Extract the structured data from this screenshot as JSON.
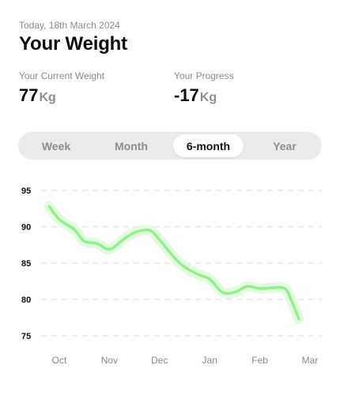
{
  "header": {
    "date": "Today, 18th March 2024",
    "title": "Your Weight"
  },
  "stats": {
    "current": {
      "label": "Your Current Weight",
      "value": "77",
      "unit": "Kg"
    },
    "progress": {
      "label": "Your Progress",
      "value": "-17",
      "unit": "Kg"
    }
  },
  "range_tabs": {
    "items": [
      "Week",
      "Month",
      "6-month",
      "Year"
    ],
    "selected": "6-month"
  },
  "colors": {
    "line": "#93ee8e",
    "glow": "#e3fbdf",
    "grid": "#dcdcdc",
    "selected_tab_bg": "#ffffff",
    "segment_bg": "#ebebeb"
  },
  "chart_data": {
    "type": "line",
    "x_tick_labels": [
      "Oct",
      "Nov",
      "Dec",
      "Jan",
      "Feb",
      "Mar"
    ],
    "y_ticks": [
      95,
      90,
      85,
      80,
      75
    ],
    "ylim": [
      75,
      95
    ],
    "grid": "horizontal dashed",
    "series": [
      {
        "x": [
          -0.2,
          0.0,
          0.3,
          0.5,
          0.75,
          1.0,
          1.25,
          1.5,
          1.8,
          2.0,
          2.4,
          2.75,
          3.0,
          3.25,
          3.5,
          3.75,
          4.0,
          4.25,
          4.5,
          4.62,
          4.78
        ],
        "values": [
          92.8,
          91.0,
          89.6,
          88.0,
          87.7,
          86.9,
          88.1,
          89.2,
          89.5,
          88.2,
          85.0,
          83.5,
          82.8,
          81.0,
          81.0,
          81.8,
          81.5,
          81.6,
          81.5,
          80.0,
          77.3
        ]
      }
    ]
  }
}
